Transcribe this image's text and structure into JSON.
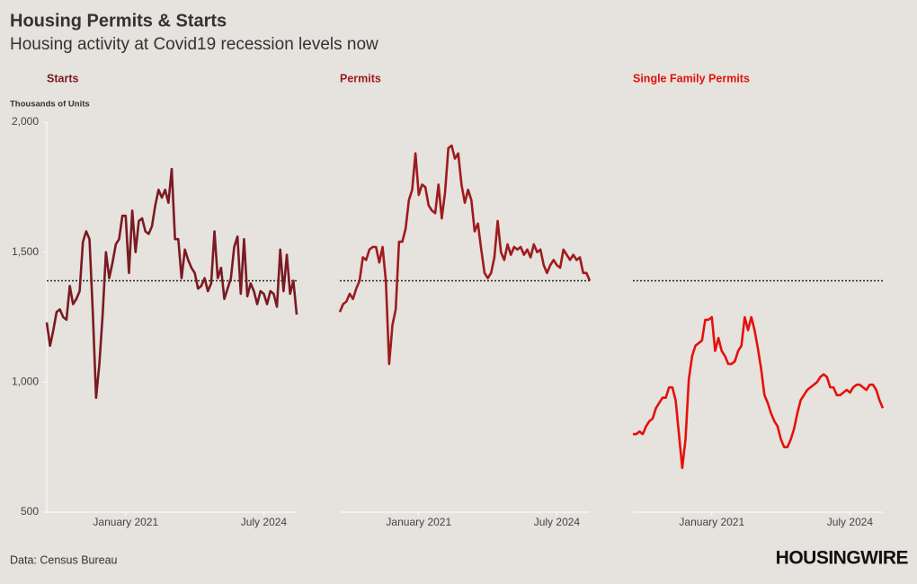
{
  "title": "Housing Permits & Starts",
  "subtitle": "Housing activity at Covid19 recession levels now",
  "source": "Data: Census Bureau",
  "logo": "HOUSINGWIRE",
  "chart_data": [
    {
      "type": "line",
      "title": "Starts",
      "y_label": "Thousands of Units",
      "color": "#7a1a22",
      "x": [
        "2019-01",
        "2019-02",
        "2019-03",
        "2019-04",
        "2019-05",
        "2019-06",
        "2019-07",
        "2019-08",
        "2019-09",
        "2019-10",
        "2019-11",
        "2019-12",
        "2020-01",
        "2020-02",
        "2020-03",
        "2020-04",
        "2020-05",
        "2020-06",
        "2020-07",
        "2020-08",
        "2020-09",
        "2020-10",
        "2020-11",
        "2020-12",
        "2021-01",
        "2021-02",
        "2021-03",
        "2021-04",
        "2021-05",
        "2021-06",
        "2021-07",
        "2021-08",
        "2021-09",
        "2021-10",
        "2021-11",
        "2021-12",
        "2022-01",
        "2022-02",
        "2022-03",
        "2022-04",
        "2022-05",
        "2022-06",
        "2022-07",
        "2022-08",
        "2022-09",
        "2022-10",
        "2022-11",
        "2022-12",
        "2023-01",
        "2023-02",
        "2023-03",
        "2023-04",
        "2023-05",
        "2023-06",
        "2023-07",
        "2023-08",
        "2023-09",
        "2023-10",
        "2023-11",
        "2023-12",
        "2024-01",
        "2024-02",
        "2024-03",
        "2024-04",
        "2024-05",
        "2024-06",
        "2024-07",
        "2024-08",
        "2024-09",
        "2024-10",
        "2024-11",
        "2024-12",
        "2025-01",
        "2025-02",
        "2025-03",
        "2025-04",
        "2025-05"
      ],
      "values": [
        1230,
        1140,
        1200,
        1270,
        1280,
        1250,
        1240,
        1370,
        1300,
        1320,
        1350,
        1540,
        1580,
        1550,
        1270,
        940,
        1070,
        1260,
        1500,
        1400,
        1460,
        1530,
        1550,
        1640,
        1640,
        1420,
        1660,
        1500,
        1620,
        1630,
        1580,
        1570,
        1600,
        1680,
        1740,
        1710,
        1740,
        1690,
        1820,
        1550,
        1550,
        1400,
        1510,
        1470,
        1440,
        1420,
        1360,
        1370,
        1400,
        1350,
        1380,
        1580,
        1400,
        1440,
        1320,
        1360,
        1400,
        1520,
        1560,
        1340,
        1550,
        1330,
        1380,
        1350,
        1300,
        1350,
        1340,
        1300,
        1350,
        1340,
        1290,
        1510,
        1350,
        1490,
        1340,
        1390,
        1260
      ],
      "reference_value": 1390,
      "xlim": [
        "2019-01",
        "2025-05"
      ],
      "xticks": [
        {
          "value": "2021-01",
          "label": "January 2021"
        },
        {
          "value": "2024-07",
          "label": "July 2024"
        }
      ],
      "ylim": [
        500,
        2000
      ],
      "yticks": [
        500,
        {
          "value": 1000,
          "label": "1,000"
        },
        {
          "value": 1500,
          "label": "1,500"
        },
        {
          "value": 2000,
          "label": "2,000"
        }
      ]
    },
    {
      "type": "line",
      "title": "Permits",
      "color": "#9e1b1e",
      "x": [
        "2019-01",
        "2019-02",
        "2019-03",
        "2019-04",
        "2019-05",
        "2019-06",
        "2019-07",
        "2019-08",
        "2019-09",
        "2019-10",
        "2019-11",
        "2019-12",
        "2020-01",
        "2020-02",
        "2020-03",
        "2020-04",
        "2020-05",
        "2020-06",
        "2020-07",
        "2020-08",
        "2020-09",
        "2020-10",
        "2020-11",
        "2020-12",
        "2021-01",
        "2021-02",
        "2021-03",
        "2021-04",
        "2021-05",
        "2021-06",
        "2021-07",
        "2021-08",
        "2021-09",
        "2021-10",
        "2021-11",
        "2021-12",
        "2022-01",
        "2022-02",
        "2022-03",
        "2022-04",
        "2022-05",
        "2022-06",
        "2022-07",
        "2022-08",
        "2022-09",
        "2022-10",
        "2022-11",
        "2022-12",
        "2023-01",
        "2023-02",
        "2023-03",
        "2023-04",
        "2023-05",
        "2023-06",
        "2023-07",
        "2023-08",
        "2023-09",
        "2023-10",
        "2023-11",
        "2023-12",
        "2024-01",
        "2024-02",
        "2024-03",
        "2024-04",
        "2024-05",
        "2024-06",
        "2024-07",
        "2024-08",
        "2024-09",
        "2024-10",
        "2024-11",
        "2024-12",
        "2025-01",
        "2025-02",
        "2025-03",
        "2025-04",
        "2025-05"
      ],
      "values": [
        1270,
        1300,
        1310,
        1340,
        1320,
        1360,
        1390,
        1480,
        1470,
        1510,
        1520,
        1520,
        1460,
        1520,
        1390,
        1070,
        1220,
        1280,
        1540,
        1540,
        1590,
        1700,
        1740,
        1880,
        1720,
        1760,
        1750,
        1680,
        1660,
        1650,
        1760,
        1630,
        1730,
        1900,
        1910,
        1860,
        1880,
        1760,
        1690,
        1740,
        1700,
        1580,
        1610,
        1510,
        1420,
        1400,
        1420,
        1480,
        1620,
        1500,
        1470,
        1530,
        1490,
        1520,
        1510,
        1520,
        1490,
        1510,
        1480,
        1530,
        1500,
        1510,
        1450,
        1420,
        1450,
        1470,
        1450,
        1440,
        1510,
        1490,
        1470,
        1490,
        1470,
        1480,
        1420,
        1420,
        1390
      ],
      "reference_value": 1390,
      "xlim": [
        "2019-01",
        "2025-05"
      ],
      "xticks": [
        {
          "value": "2021-01",
          "label": "January 2021"
        },
        {
          "value": "2024-07",
          "label": "July 2024"
        }
      ],
      "ylim": [
        500,
        2000
      ]
    },
    {
      "type": "line",
      "title": "Single Family Permits",
      "color": "#e3120b",
      "x": [
        "2019-01",
        "2019-02",
        "2019-03",
        "2019-04",
        "2019-05",
        "2019-06",
        "2019-07",
        "2019-08",
        "2019-09",
        "2019-10",
        "2019-11",
        "2019-12",
        "2020-01",
        "2020-02",
        "2020-03",
        "2020-04",
        "2020-05",
        "2020-06",
        "2020-07",
        "2020-08",
        "2020-09",
        "2020-10",
        "2020-11",
        "2020-12",
        "2021-01",
        "2021-02",
        "2021-03",
        "2021-04",
        "2021-05",
        "2021-06",
        "2021-07",
        "2021-08",
        "2021-09",
        "2021-10",
        "2021-11",
        "2021-12",
        "2022-01",
        "2022-02",
        "2022-03",
        "2022-04",
        "2022-05",
        "2022-06",
        "2022-07",
        "2022-08",
        "2022-09",
        "2022-10",
        "2022-11",
        "2022-12",
        "2023-01",
        "2023-02",
        "2023-03",
        "2023-04",
        "2023-05",
        "2023-06",
        "2023-07",
        "2023-08",
        "2023-09",
        "2023-10",
        "2023-11",
        "2023-12",
        "2024-01",
        "2024-02",
        "2024-03",
        "2024-04",
        "2024-05",
        "2024-06",
        "2024-07",
        "2024-08",
        "2024-09",
        "2024-10",
        "2024-11",
        "2024-12",
        "2025-01",
        "2025-02",
        "2025-03",
        "2025-04",
        "2025-05"
      ],
      "values": [
        800,
        800,
        810,
        800,
        830,
        850,
        860,
        900,
        920,
        940,
        940,
        980,
        980,
        930,
        800,
        670,
        780,
        1010,
        1100,
        1140,
        1150,
        1160,
        1240,
        1240,
        1250,
        1120,
        1170,
        1120,
        1100,
        1070,
        1070,
        1080,
        1120,
        1140,
        1250,
        1200,
        1250,
        1200,
        1130,
        1050,
        950,
        920,
        880,
        850,
        830,
        780,
        750,
        750,
        780,
        820,
        880,
        930,
        950,
        970,
        980,
        990,
        1000,
        1020,
        1030,
        1020,
        980,
        980,
        950,
        950,
        960,
        970,
        960,
        980,
        990,
        990,
        980,
        970,
        990,
        990,
        970,
        930,
        900
      ],
      "reference_value": 1390,
      "xlim": [
        "2019-01",
        "2025-05"
      ],
      "xticks": [
        {
          "value": "2021-01",
          "label": "January 2021"
        },
        {
          "value": "2024-07",
          "label": "July 2024"
        }
      ],
      "ylim": [
        500,
        2000
      ]
    }
  ]
}
